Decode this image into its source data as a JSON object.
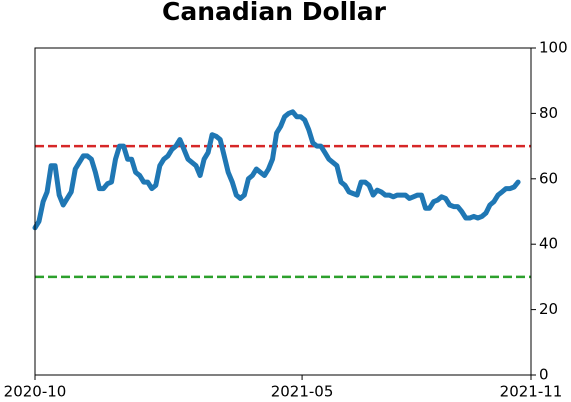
{
  "chart_data": {
    "type": "line",
    "title": "Canadian Dollar",
    "xlim": [
      "2020-10",
      "2021-11"
    ],
    "xticks": [
      "2020-10",
      "2021-05",
      "2021-11"
    ],
    "ylim": [
      0,
      100
    ],
    "yticks": [
      0,
      20,
      40,
      60,
      80,
      100
    ],
    "reference_lines": [
      {
        "value": 70,
        "color": "#d62728"
      },
      {
        "value": 30,
        "color": "#2ca02c"
      }
    ],
    "series": [
      {
        "color": "#1f77b4",
        "values": [
          45,
          47,
          53,
          56,
          64,
          64,
          55,
          52,
          54,
          56,
          63,
          65,
          67,
          67,
          66,
          62,
          57,
          57,
          58.5,
          59,
          66,
          70,
          70,
          66,
          66,
          62,
          61,
          59,
          59,
          57,
          58,
          64,
          66,
          67,
          69,
          70,
          72,
          69,
          66,
          65,
          64,
          61,
          66,
          68,
          73.5,
          73,
          72,
          67,
          62,
          59,
          55,
          54,
          55,
          60,
          61,
          63,
          62,
          61,
          63,
          66,
          74,
          76,
          79,
          80,
          80.5,
          79,
          79,
          78,
          75,
          71,
          70,
          70,
          68,
          66,
          65,
          64,
          59,
          58,
          56,
          55.5,
          55,
          59,
          59,
          58,
          55,
          56.5,
          56,
          55,
          55,
          54.5,
          55,
          55,
          55,
          54,
          54.5,
          55,
          55,
          51,
          51,
          53,
          53.5,
          54.5,
          54,
          52,
          51.5,
          51.5,
          50,
          48,
          48,
          48.5,
          48,
          48.5,
          49.5,
          52,
          53,
          55,
          56,
          57,
          57,
          57.5,
          59
        ]
      }
    ]
  }
}
